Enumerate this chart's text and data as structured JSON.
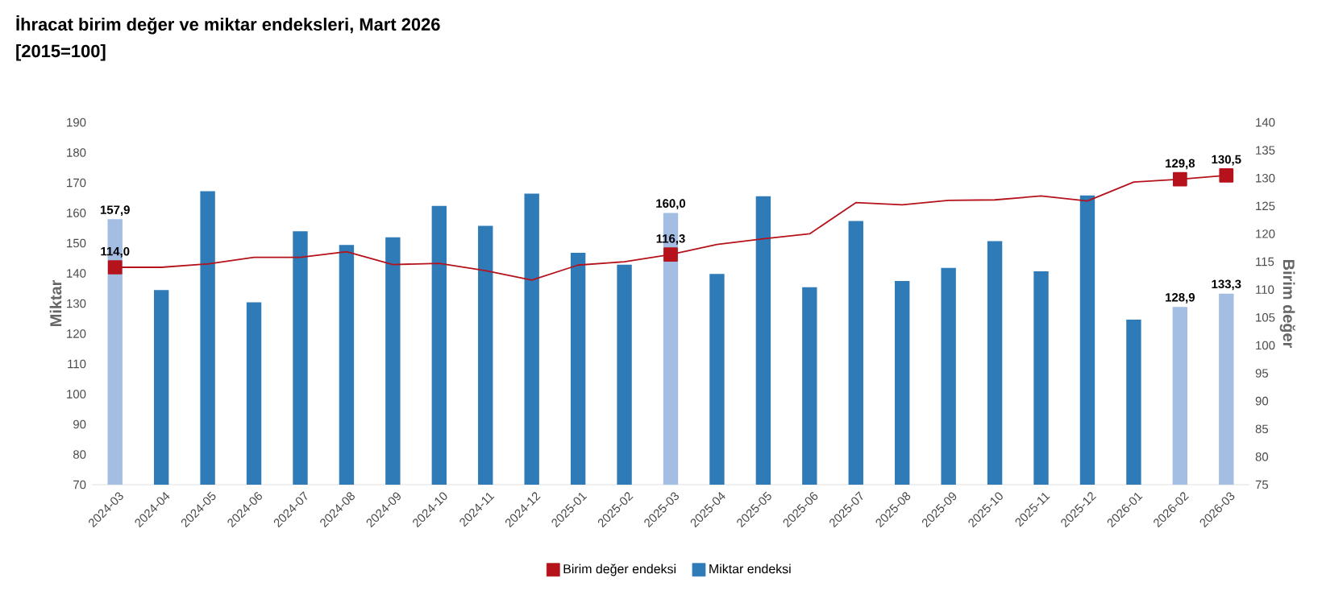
{
  "chart_data": {
    "type": "bar",
    "title": "İhracat birim değer ve miktar endeksleri, Mart 2026",
    "subtitle": "[2015=100]",
    "xlabel": null,
    "ylabel": "Miktar",
    "y2label": "Birim değer",
    "categories": [
      "2024-03",
      "2024-04",
      "2024-05",
      "2024-06",
      "2024-07",
      "2024-08",
      "2024-09",
      "2024-10",
      "2024-11",
      "2024-12",
      "2025-01",
      "2025-02",
      "2025-03",
      "2025-04",
      "2025-05",
      "2025-06",
      "2025-07",
      "2025-08",
      "2025-09",
      "2025-10",
      "2025-11",
      "2025-12",
      "2026-01",
      "2026-02",
      "2026-03"
    ],
    "series": [
      {
        "name": "Birim değer endeksi",
        "type": "line",
        "axis": "y2",
        "color": "#b5121b",
        "values": [
          114.0,
          114.0,
          114.6,
          115.8,
          115.8,
          116.8,
          114.5,
          114.7,
          113.4,
          111.7,
          114.4,
          115.0,
          116.3,
          118.1,
          119.1,
          120.0,
          125.6,
          125.2,
          126.0,
          126.1,
          126.8,
          125.9,
          129.3,
          129.8,
          130.5
        ],
        "value_labels": [
          "114,0",
          null,
          null,
          null,
          null,
          null,
          null,
          null,
          null,
          null,
          null,
          null,
          "116,3",
          null,
          null,
          null,
          null,
          null,
          null,
          null,
          null,
          null,
          null,
          "129,8",
          "130,5"
        ]
      },
      {
        "name": "Miktar endeksi",
        "color": "#2e7bb8",
        "colors": [
          "#a4bde3",
          "#2e7bb8",
          "#2e7bb8",
          "#2e7bb8",
          "#2e7bb8",
          "#2e7bb8",
          "#2e7bb8",
          "#2e7bb8",
          "#2e7bb8",
          "#2e7bb8",
          "#2e7bb8",
          "#2e7bb8",
          "#a4bde3",
          "#2e7bb8",
          "#2e7bb8",
          "#2e7bb8",
          "#2e7bb8",
          "#2e7bb8",
          "#2e7bb8",
          "#2e7bb8",
          "#2e7bb8",
          "#2e7bb8",
          "#2e7bb8",
          "#a4bde3",
          "#a4bde3"
        ],
        "values": [
          157.9,
          134.5,
          167.2,
          130.4,
          153.9,
          149.4,
          151.9,
          162.3,
          155.7,
          166.4,
          146.8,
          142.9,
          160.0,
          139.8,
          165.5,
          135.4,
          157.3,
          137.5,
          141.8,
          150.7,
          140.7,
          165.8,
          124.7,
          128.9,
          133.3
        ],
        "value_labels": [
          "157,9",
          null,
          null,
          null,
          null,
          null,
          null,
          null,
          null,
          null,
          null,
          null,
          "160,0",
          null,
          null,
          null,
          null,
          null,
          null,
          null,
          null,
          null,
          null,
          "128,9",
          "133,3"
        ]
      }
    ],
    "ylim": [
      70,
      190
    ],
    "yticks": [
      70,
      80,
      90,
      100,
      110,
      120,
      130,
      140,
      150,
      160,
      170,
      180,
      190
    ],
    "y2lim": [
      75,
      140
    ],
    "y2ticks": [
      75,
      80,
      85,
      90,
      95,
      100,
      105,
      110,
      115,
      120,
      125,
      130,
      135,
      140
    ],
    "grid": false,
    "legend": "bottom"
  }
}
